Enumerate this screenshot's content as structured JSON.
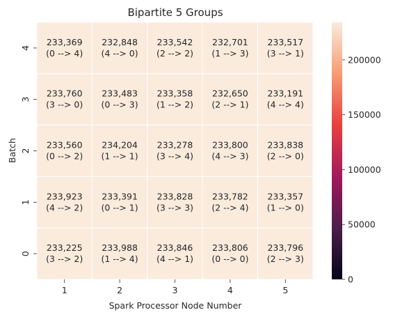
{
  "chart_data": {
    "type": "heatmap",
    "title": "Bipartite 5 Groups",
    "xlabel": "Spark Processor Node Number",
    "ylabel": "Batch",
    "x_categories": [
      "1",
      "2",
      "3",
      "4",
      "5"
    ],
    "y_categories": [
      "4",
      "3",
      "2",
      "1",
      "0"
    ],
    "values": [
      [
        233369,
        232848,
        233542,
        232701,
        233517
      ],
      [
        233760,
        233483,
        233358,
        232650,
        233191
      ],
      [
        233560,
        234204,
        233278,
        233800,
        233838
      ],
      [
        233923,
        233391,
        233828,
        233782,
        233357
      ],
      [
        233225,
        233988,
        233846,
        233806,
        233796
      ]
    ],
    "value_labels": [
      [
        "233,369",
        "232,848",
        "233,542",
        "232,701",
        "233,517"
      ],
      [
        "233,760",
        "233,483",
        "233,358",
        "232,650",
        "233,191"
      ],
      [
        "233,560",
        "234,204",
        "233,278",
        "233,800",
        "233,838"
      ],
      [
        "233,923",
        "233,391",
        "233,828",
        "233,782",
        "233,357"
      ],
      [
        "233,225",
        "233,988",
        "233,846",
        "233,806",
        "233,796"
      ]
    ],
    "cell_labels": [
      [
        "(0 --> 4)",
        "(4 --> 0)",
        "(2 --> 2)",
        "(1 --> 3)",
        "(3 --> 1)"
      ],
      [
        "(3 --> 0)",
        "(0 --> 3)",
        "(1 --> 2)",
        "(2 --> 1)",
        "(4 --> 4)"
      ],
      [
        "(0 --> 2)",
        "(1 --> 1)",
        "(3 --> 4)",
        "(4 --> 3)",
        "(2 --> 0)"
      ],
      [
        "(4 --> 2)",
        "(0 --> 1)",
        "(3 --> 3)",
        "(2 --> 4)",
        "(1 --> 0)"
      ],
      [
        "(3 --> 2)",
        "(1 --> 4)",
        "(4 --> 1)",
        "(0 --> 0)",
        "(2 --> 3)"
      ]
    ],
    "colorbar": {
      "min": 0,
      "max": 234204,
      "ticks": [
        "0",
        "50000",
        "100000",
        "150000",
        "200000"
      ],
      "tick_values": [
        0,
        50000,
        100000,
        150000,
        200000
      ],
      "colormap": "rocket",
      "stops": [
        "#03051a",
        "#4c1d4b",
        "#a11a5b",
        "#e83f3f",
        "#f69c73",
        "#faebdd"
      ]
    },
    "cell_color": "#faebdd",
    "grid_color": "#ffffff",
    "legend": "right"
  }
}
